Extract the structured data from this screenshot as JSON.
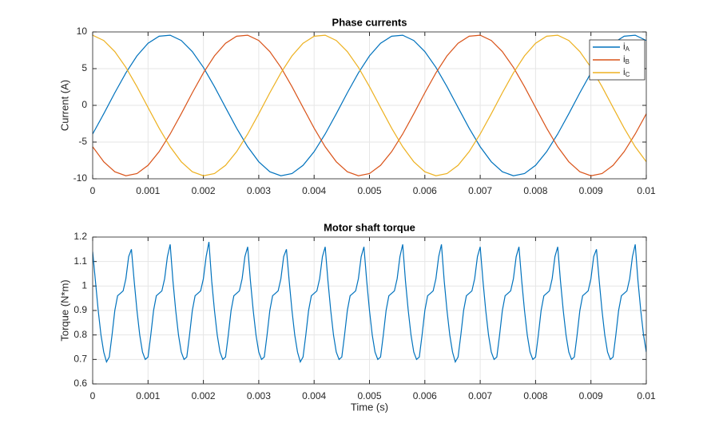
{
  "chart_data": [
    {
      "type": "line",
      "title": "Phase currents",
      "ylabel": "Current (A)",
      "x": [
        0,
        0.0002,
        0.0004,
        0.0006,
        0.0008,
        0.001,
        0.0012,
        0.0014,
        0.0016,
        0.0018,
        0.002,
        0.0022,
        0.0024,
        0.0026,
        0.0028,
        0.003,
        0.0032,
        0.0034,
        0.0036,
        0.0038,
        0.004,
        0.0042,
        0.0044,
        0.0046,
        0.0048,
        0.005,
        0.0052,
        0.0054,
        0.0056,
        0.0058,
        0.006,
        0.0062,
        0.0064,
        0.0066,
        0.0068,
        0.007,
        0.0072,
        0.0074,
        0.0076,
        0.0078,
        0.008,
        0.0082,
        0.0084,
        0.0086,
        0.0088,
        0.009,
        0.0092,
        0.0094,
        0.0096,
        0.0098,
        0.01
      ],
      "series": [
        {
          "name": "iA",
          "color": "#0072bd",
          "values": [
            -3.9,
            -1.15,
            1.71,
            4.42,
            6.74,
            8.45,
            9.42,
            9.55,
            8.83,
            7.32,
            5.17,
            2.55,
            -0.29,
            -3.1,
            -5.64,
            -7.68,
            -9.04,
            -9.59,
            -9.29,
            -8.17,
            -6.31,
            -3.9,
            -1.15,
            1.71,
            4.42,
            6.74,
            8.45,
            9.42,
            9.55,
            8.83,
            7.32,
            5.17,
            2.55,
            -0.29,
            -3.1,
            -5.64,
            -7.68,
            -9.04,
            -9.59,
            -9.29,
            -8.17,
            -6.31,
            -3.9,
            -1.15,
            1.71,
            4.42,
            6.74,
            8.45,
            9.42,
            9.55,
            8.83
          ]
        },
        {
          "name": "iB",
          "color": "#d95319",
          "values": [
            -5.64,
            -7.68,
            -9.04,
            -9.59,
            -9.29,
            -8.17,
            -6.31,
            -3.9,
            -1.15,
            1.71,
            4.42,
            6.74,
            8.45,
            9.42,
            9.55,
            8.83,
            7.32,
            5.17,
            2.55,
            -0.29,
            -3.1,
            -5.64,
            -7.68,
            -9.04,
            -9.59,
            -9.29,
            -8.17,
            -6.31,
            -3.9,
            -1.15,
            1.71,
            4.42,
            6.74,
            8.45,
            9.42,
            9.55,
            8.83,
            7.32,
            5.17,
            2.55,
            -0.29,
            -3.1,
            -5.64,
            -7.68,
            -9.04,
            -9.59,
            -9.29,
            -8.17,
            -6.31,
            -3.9,
            -1.15
          ]
        },
        {
          "name": "iC",
          "color": "#edb120",
          "values": [
            9.55,
            8.83,
            7.32,
            5.17,
            2.55,
            -0.29,
            -3.1,
            -5.64,
            -7.68,
            -9.04,
            -9.59,
            -9.29,
            -8.17,
            -6.31,
            -3.9,
            -1.15,
            1.71,
            4.42,
            6.74,
            8.45,
            9.42,
            9.55,
            8.83,
            7.32,
            5.17,
            2.55,
            -0.29,
            -3.1,
            -5.64,
            -7.68,
            -9.04,
            -9.59,
            -9.29,
            -8.17,
            -6.31,
            -3.9,
            -1.15,
            1.71,
            4.42,
            6.74,
            8.45,
            9.42,
            9.55,
            8.83,
            7.32,
            5.17,
            2.55,
            -0.29,
            -3.1,
            -5.64,
            -7.68
          ]
        }
      ],
      "xlim": [
        0,
        0.01
      ],
      "xticks": [
        0,
        0.001,
        0.002,
        0.003,
        0.004,
        0.005,
        0.006,
        0.007,
        0.008,
        0.009,
        0.01
      ],
      "ylim": [
        -10,
        10
      ],
      "yticks": [
        -10,
        -5,
        0,
        5,
        10
      ],
      "grid": true,
      "legend": "northeast"
    },
    {
      "type": "line",
      "title": "Motor shaft torque",
      "ylabel": "Torque (N*m)",
      "xlabel": "Time (s)",
      "color": "#0072bd",
      "x": [
        0,
        5e-05,
        0.0001,
        0.00015,
        0.0002,
        0.00025,
        0.0003,
        0.00035,
        0.0004,
        0.00045,
        0.0005,
        0.00055,
        0.0006,
        0.00065,
        0.0007,
        0.00075,
        0.0008,
        0.00085,
        0.0009,
        0.00095,
        0.001,
        0.00105,
        0.0011,
        0.00115,
        0.0012,
        0.00125,
        0.0013,
        0.00135,
        0.0014,
        0.00145,
        0.0015,
        0.00155,
        0.0016,
        0.00165,
        0.0017,
        0.00175,
        0.0018,
        0.00185,
        0.0019,
        0.00195,
        0.002,
        0.00205,
        0.0021,
        0.00215,
        0.0022,
        0.00225,
        0.0023,
        0.00235,
        0.0024,
        0.00245,
        0.0025,
        0.00255,
        0.0026,
        0.00265,
        0.0027,
        0.00275,
        0.0028,
        0.00285,
        0.0029,
        0.00295,
        0.003,
        0.00305,
        0.0031,
        0.00315,
        0.0032,
        0.00325,
        0.0033,
        0.00335,
        0.0034,
        0.00345,
        0.0035,
        0.00355,
        0.0036,
        0.00365,
        0.0037,
        0.00375,
        0.0038,
        0.00385,
        0.0039,
        0.00395,
        0.004,
        0.00405,
        0.0041,
        0.00415,
        0.0042,
        0.00425,
        0.0043,
        0.00435,
        0.0044,
        0.00445,
        0.0045,
        0.00455,
        0.0046,
        0.00465,
        0.0047,
        0.00475,
        0.0048,
        0.00485,
        0.0049,
        0.00495,
        0.005,
        0.00505,
        0.0051,
        0.00515,
        0.0052,
        0.00525,
        0.0053,
        0.00535,
        0.0054,
        0.00545,
        0.0055,
        0.00555,
        0.0056,
        0.00565,
        0.0057,
        0.00575,
        0.0058,
        0.00585,
        0.0059,
        0.00595,
        0.006,
        0.00605,
        0.0061,
        0.00615,
        0.0062,
        0.00625,
        0.0063,
        0.00635,
        0.0064,
        0.00645,
        0.0065,
        0.00655,
        0.0066,
        0.00665,
        0.0067,
        0.00675,
        0.0068,
        0.00685,
        0.0069,
        0.00695,
        0.007,
        0.00705,
        0.0071,
        0.00715,
        0.0072,
        0.00725,
        0.0073,
        0.00735,
        0.0074,
        0.00745,
        0.0075,
        0.00755,
        0.0076,
        0.00765,
        0.0077,
        0.00775,
        0.0078,
        0.00785,
        0.0079,
        0.00795,
        0.008,
        0.00805,
        0.0081,
        0.00815,
        0.0082,
        0.00825,
        0.0083,
        0.00835,
        0.0084,
        0.00845,
        0.0085,
        0.00855,
        0.0086,
        0.00865,
        0.0087,
        0.00875,
        0.0088,
        0.00885,
        0.0089,
        0.00895,
        0.009,
        0.00905,
        0.0091,
        0.00915,
        0.0092,
        0.00925,
        0.0093,
        0.00935,
        0.0094,
        0.00945,
        0.0095,
        0.00955,
        0.0096,
        0.00965,
        0.0097,
        0.00975,
        0.0098,
        0.00985,
        0.0099,
        0.00995,
        0.01
      ],
      "values": [
        1.14,
        1.02,
        0.9,
        0.8,
        0.73,
        0.69,
        0.71,
        0.8,
        0.9,
        0.96,
        0.97,
        0.98,
        1.03,
        1.12,
        1.15,
        1.02,
        0.9,
        0.8,
        0.73,
        0.7,
        0.71,
        0.8,
        0.9,
        0.96,
        0.97,
        0.98,
        1.03,
        1.12,
        1.17,
        1.02,
        0.9,
        0.8,
        0.73,
        0.7,
        0.71,
        0.8,
        0.9,
        0.96,
        0.97,
        0.98,
        1.03,
        1.12,
        1.18,
        1.02,
        0.9,
        0.8,
        0.73,
        0.7,
        0.71,
        0.8,
        0.9,
        0.96,
        0.97,
        0.98,
        1.03,
        1.12,
        1.16,
        1.02,
        0.9,
        0.8,
        0.73,
        0.7,
        0.71,
        0.8,
        0.9,
        0.96,
        0.97,
        0.98,
        1.03,
        1.12,
        1.15,
        1.02,
        0.9,
        0.8,
        0.73,
        0.69,
        0.71,
        0.8,
        0.9,
        0.96,
        0.97,
        0.98,
        1.03,
        1.12,
        1.16,
        1.02,
        0.9,
        0.8,
        0.73,
        0.7,
        0.71,
        0.8,
        0.9,
        0.96,
        0.97,
        0.98,
        1.03,
        1.12,
        1.16,
        1.02,
        0.9,
        0.8,
        0.73,
        0.7,
        0.71,
        0.8,
        0.9,
        0.96,
        0.97,
        0.98,
        1.03,
        1.12,
        1.17,
        1.02,
        0.9,
        0.8,
        0.73,
        0.7,
        0.71,
        0.8,
        0.9,
        0.96,
        0.97,
        0.98,
        1.03,
        1.12,
        1.17,
        1.02,
        0.9,
        0.8,
        0.73,
        0.69,
        0.71,
        0.8,
        0.9,
        0.96,
        0.97,
        0.98,
        1.03,
        1.12,
        1.16,
        1.02,
        0.9,
        0.8,
        0.73,
        0.7,
        0.71,
        0.8,
        0.9,
        0.96,
        0.97,
        0.98,
        1.03,
        1.12,
        1.16,
        1.02,
        0.9,
        0.8,
        0.73,
        0.7,
        0.71,
        0.8,
        0.9,
        0.96,
        0.97,
        0.98,
        1.03,
        1.12,
        1.16,
        1.02,
        0.9,
        0.8,
        0.73,
        0.7,
        0.71,
        0.8,
        0.9,
        0.96,
        0.97,
        0.98,
        1.03,
        1.12,
        1.15,
        1.02,
        0.9,
        0.8,
        0.73,
        0.7,
        0.71,
        0.8,
        0.9,
        0.96,
        0.97,
        0.98,
        1.03,
        1.12,
        1.17,
        1.02,
        0.9,
        0.8,
        0.73
      ],
      "xlim": [
        0,
        0.01
      ],
      "xticks": [
        0,
        0.001,
        0.002,
        0.003,
        0.004,
        0.005,
        0.006,
        0.007,
        0.008,
        0.009,
        0.01
      ],
      "ylim": [
        0.6,
        1.2
      ],
      "yticks": [
        0.6,
        0.7,
        0.8,
        0.9,
        1,
        1.1,
        1.2
      ],
      "grid": true
    }
  ]
}
